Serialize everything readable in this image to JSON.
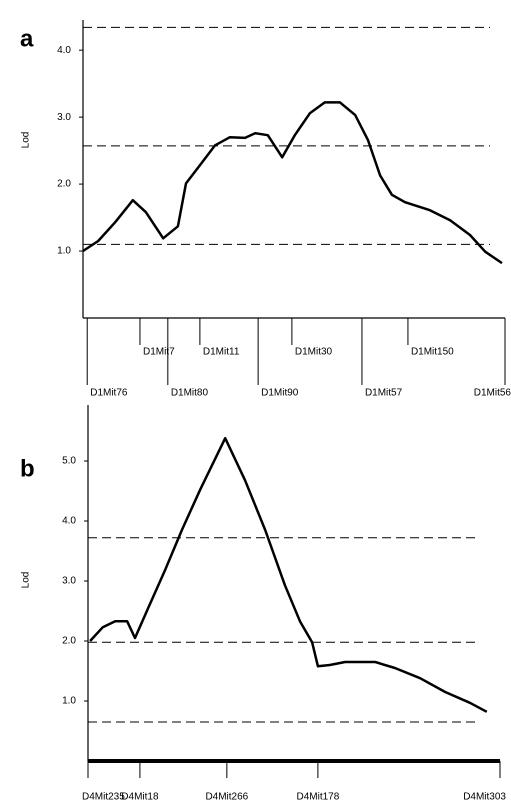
{
  "chart_data": [
    {
      "type": "line",
      "title": "a",
      "ylabel": "Lod",
      "color": "#000000",
      "ylim": [
        0,
        4.6
      ],
      "yticks": [
        {
          "value": 1,
          "label": "1.0"
        },
        {
          "value": 2,
          "label": "2.0"
        },
        {
          "value": 3,
          "label": "3.0"
        },
        {
          "value": 4,
          "label": "4.0"
        }
      ],
      "xlim": [
        0,
        100
      ],
      "x": [
        0,
        3.6,
        7.6,
        11.8,
        14.9,
        19,
        22.5,
        24.4,
        27.7,
        31.3,
        34.8,
        38.4,
        40.8,
        43.8,
        47.2,
        50.2,
        53.8,
        57.3,
        60.9,
        64.5,
        67.5,
        70.4,
        73.2,
        76.3,
        82.2,
        87,
        91.7,
        95.3,
        99.3
      ],
      "values": [
        1.0,
        1.15,
        1.43,
        1.76,
        1.58,
        1.19,
        1.37,
        2.01,
        2.28,
        2.58,
        2.7,
        2.69,
        2.76,
        2.73,
        2.4,
        2.73,
        3.06,
        3.22,
        3.22,
        3.03,
        2.66,
        2.13,
        1.84,
        1.73,
        1.61,
        1.46,
        1.24,
        0.99,
        0.82
      ],
      "thresholds": [
        4.34,
        2.57,
        1.1
      ],
      "markers": [
        {
          "label": "D1Mit76",
          "x": 1
        },
        {
          "label": "D1Mit7",
          "x": 13.5
        },
        {
          "label": "D1Mit80",
          "x": 20.1
        },
        {
          "label": "D1Mit11",
          "x": 27.7
        },
        {
          "label": "D1Mit90",
          "x": 41.5
        },
        {
          "label": "D1Mit30",
          "x": 49.5
        },
        {
          "label": "D1Mit57",
          "x": 66.1
        },
        {
          "label": "D1Mit150",
          "x": 77
        },
        {
          "label": "D1Mit56",
          "x": 100
        }
      ]
    },
    {
      "type": "line",
      "title": "b",
      "ylabel": "Lod",
      "color": "#000000",
      "ylim": [
        0,
        5.9
      ],
      "yticks": [
        {
          "value": 1,
          "label": "1.0"
        },
        {
          "value": 2,
          "label": "2.0"
        },
        {
          "value": 3,
          "label": "3.0"
        },
        {
          "value": 4,
          "label": "4.0"
        },
        {
          "value": 5,
          "label": "5.0"
        }
      ],
      "xlim": [
        0,
        100
      ],
      "x": [
        0.5,
        3.6,
        6.6,
        9.5,
        11.4,
        14.6,
        18.7,
        22.8,
        27.2,
        33.3,
        38.1,
        43,
        47.8,
        51.5,
        54.4,
        55.8,
        58.7,
        62.4,
        69.7,
        74.5,
        80.6,
        86.7,
        92.7,
        96.8
      ],
      "values": [
        2.0,
        2.23,
        2.33,
        2.33,
        2.05,
        2.55,
        3.18,
        3.85,
        4.52,
        5.38,
        4.68,
        3.85,
        2.93,
        2.32,
        1.98,
        1.58,
        1.6,
        1.65,
        1.65,
        1.55,
        1.38,
        1.15,
        0.97,
        0.82
      ],
      "thresholds": [
        3.72,
        1.98,
        0.65
      ],
      "markers": [
        {
          "label": "D4Mit235",
          "x": 0
        },
        {
          "label": "D4Mit18",
          "x": 12.6
        },
        {
          "label": "D4Mit266",
          "x": 33.7
        },
        {
          "label": "D4Mit178",
          "x": 55.8
        },
        {
          "label": "D4Mit303",
          "x": 100
        }
      ]
    }
  ]
}
